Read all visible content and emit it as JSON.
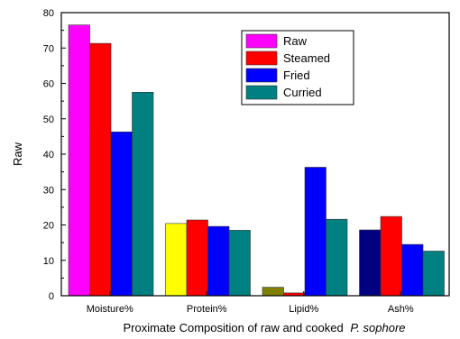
{
  "chart_data": {
    "type": "bar",
    "title": "",
    "xlabel_prefix": "Proximate Composition of raw and cooked",
    "xlabel_italic": "P. sophore",
    "ylabel": "Raw",
    "ylim": [
      0,
      80
    ],
    "yticks": [
      0,
      10,
      20,
      30,
      40,
      50,
      60,
      70,
      80
    ],
    "categories": [
      "Moisture%",
      "Protein%",
      "Lipid%",
      "Ash%"
    ],
    "series": [
      {
        "name": "Raw",
        "values": [
          76.5,
          20.4,
          2.4,
          18.6
        ]
      },
      {
        "name": "Steamed",
        "values": [
          71.3,
          21.4,
          0.8,
          22.4
        ]
      },
      {
        "name": "Fried",
        "values": [
          46.3,
          19.6,
          36.3,
          14.5
        ]
      },
      {
        "name": "Curried",
        "values": [
          57.5,
          18.5,
          21.6,
          12.6
        ]
      }
    ],
    "bar_colors": [
      [
        "#ff00ff",
        "#ff0000",
        "#0000ff",
        "#008080"
      ],
      [
        "#ffff00",
        "#ff0000",
        "#0000ff",
        "#008080"
      ],
      [
        "#808000",
        "#ff0000",
        "#0000ff",
        "#008080"
      ],
      [
        "#000080",
        "#ff0000",
        "#0000ff",
        "#008080"
      ]
    ],
    "legend_colors": [
      "#ff00ff",
      "#ff0000",
      "#0000ff",
      "#008080"
    ],
    "legend_position": "top-right",
    "grid": false
  }
}
